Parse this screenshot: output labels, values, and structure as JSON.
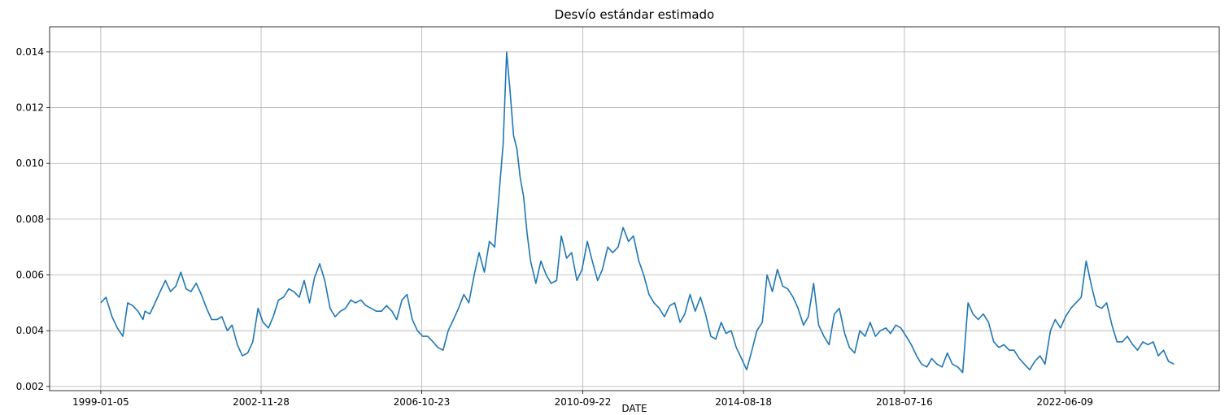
{
  "chart_data": {
    "type": "line",
    "title": "Desvío estándar estimado",
    "xlabel": "DATE",
    "ylabel": "",
    "grid": true,
    "legend": "none",
    "line_color": "#1f77b4",
    "x_ticks": [
      "1999-01-05",
      "2002-11-28",
      "2006-10-23",
      "2010-09-22",
      "2014-08-18",
      "2018-07-16",
      "2022-06-09"
    ],
    "x_range": [
      "1997-10-08",
      "2026-03-10"
    ],
    "y_ticks": [
      "0.002",
      "0.004",
      "0.006",
      "0.008",
      "0.010",
      "0.012",
      "0.014"
    ],
    "y_values": [
      0.002,
      0.004,
      0.006,
      0.008,
      0.01,
      0.012,
      0.014
    ],
    "ylim": [
      0.00185,
      0.0149
    ],
    "series": [
      {
        "x": [
          "1999-01-05",
          "1999-02-20",
          "1999-04-15",
          "1999-06-01",
          "1999-07-20",
          "1999-09-01",
          "1999-10-15",
          "1999-12-01",
          "2000-01-15",
          "2000-02-01",
          "2000-03-15",
          "2000-05-01",
          "2000-06-15",
          "2000-08-01",
          "2000-09-15",
          "2000-11-01",
          "2000-12-15",
          "2001-02-01",
          "2001-03-15",
          "2001-05-01",
          "2001-06-15",
          "2001-08-01",
          "2001-09-15",
          "2001-11-01",
          "2001-12-15",
          "2002-02-01",
          "2002-03-15",
          "2002-05-01",
          "2002-06-15",
          "2002-08-01",
          "2002-09-15",
          "2002-11-01",
          "2002-12-15",
          "2003-02-01",
          "2003-03-15",
          "2003-05-01",
          "2003-06-15",
          "2003-08-01",
          "2003-09-15",
          "2003-11-01",
          "2003-12-15",
          "2004-02-01",
          "2004-03-15",
          "2004-05-01",
          "2004-06-15",
          "2004-08-01",
          "2004-09-15",
          "2004-11-01",
          "2004-12-15",
          "2005-02-01",
          "2005-03-15",
          "2005-05-01",
          "2005-06-15",
          "2005-08-01",
          "2005-09-15",
          "2005-11-01",
          "2005-12-15",
          "2006-02-01",
          "2006-03-15",
          "2006-05-01",
          "2006-06-15",
          "2006-08-01",
          "2006-09-15",
          "2006-11-01",
          "2006-12-15",
          "2007-02-01",
          "2007-03-15",
          "2007-05-01",
          "2007-06-15",
          "2007-08-01",
          "2007-09-15",
          "2007-11-01",
          "2007-12-15",
          "2008-02-01",
          "2008-03-15",
          "2008-05-01",
          "2008-06-15",
          "2008-08-01",
          "2008-09-15",
          "2008-10-15",
          "2008-11-15",
          "2008-12-15",
          "2009-01-15",
          "2009-02-15",
          "2009-03-15",
          "2009-04-15",
          "2009-05-15",
          "2009-06-15",
          "2009-08-01",
          "2009-09-15",
          "2009-11-01",
          "2009-12-15",
          "2010-02-01",
          "2010-03-15",
          "2010-05-01",
          "2010-06-15",
          "2010-08-01",
          "2010-09-15",
          "2010-11-01",
          "2010-12-15",
          "2011-02-01",
          "2011-03-15",
          "2011-05-01",
          "2011-06-15",
          "2011-08-01",
          "2011-09-15",
          "2011-11-01",
          "2011-12-15",
          "2012-02-01",
          "2012-03-15",
          "2012-05-01",
          "2012-06-15",
          "2012-08-01",
          "2012-09-15",
          "2012-11-01",
          "2012-12-15",
          "2013-02-01",
          "2013-03-15",
          "2013-05-01",
          "2013-06-15",
          "2013-08-01",
          "2013-09-15",
          "2013-11-01",
          "2013-12-15",
          "2014-02-01",
          "2014-03-15",
          "2014-05-01",
          "2014-06-15",
          "2014-08-01",
          "2014-09-15",
          "2014-11-01",
          "2014-12-15",
          "2015-02-01",
          "2015-03-15",
          "2015-05-01",
          "2015-06-15",
          "2015-08-01",
          "2015-09-15",
          "2015-11-01",
          "2015-12-15",
          "2016-02-01",
          "2016-03-15",
          "2016-05-01",
          "2016-06-15",
          "2016-08-01",
          "2016-09-15",
          "2016-11-01",
          "2016-12-15",
          "2017-02-01",
          "2017-03-15",
          "2017-05-01",
          "2017-06-15",
          "2017-08-01",
          "2017-09-15",
          "2017-11-01",
          "2017-12-15",
          "2018-02-01",
          "2018-03-15",
          "2018-05-01",
          "2018-06-15",
          "2018-08-01",
          "2018-09-15",
          "2018-11-01",
          "2018-12-15",
          "2019-02-01",
          "2019-03-15",
          "2019-05-01",
          "2019-06-15",
          "2019-08-01",
          "2019-09-15",
          "2019-11-01",
          "2019-12-15",
          "2020-02-01",
          "2020-03-15",
          "2020-05-01",
          "2020-06-15",
          "2020-08-01",
          "2020-09-15",
          "2020-11-01",
          "2020-12-15",
          "2021-02-01",
          "2021-03-15",
          "2021-05-01",
          "2021-06-15",
          "2021-08-01",
          "2021-09-15",
          "2021-11-01",
          "2021-12-15",
          "2022-02-01",
          "2022-03-15",
          "2022-05-01",
          "2022-06-15",
          "2022-08-01",
          "2022-09-15",
          "2022-11-01",
          "2022-12-15",
          "2023-02-01",
          "2023-03-15",
          "2023-05-01",
          "2023-06-15",
          "2023-08-01",
          "2023-09-15",
          "2023-11-01",
          "2023-12-15",
          "2024-02-01",
          "2024-03-15",
          "2024-05-01",
          "2024-06-15",
          "2024-08-01",
          "2024-09-15",
          "2024-11-01",
          "2024-12-15",
          "2025-02-01"
        ],
        "y": [
          0.005,
          0.0052,
          0.0045,
          0.0041,
          0.0038,
          0.005,
          0.0049,
          0.0047,
          0.0044,
          0.0047,
          0.0046,
          0.005,
          0.0054,
          0.0058,
          0.0054,
          0.0056,
          0.0061,
          0.0055,
          0.0054,
          0.0057,
          0.0053,
          0.0048,
          0.0044,
          0.0044,
          0.0045,
          0.004,
          0.0042,
          0.0035,
          0.0031,
          0.0032,
          0.0036,
          0.0048,
          0.0043,
          0.0041,
          0.0045,
          0.0051,
          0.0052,
          0.0055,
          0.0054,
          0.0052,
          0.0058,
          0.005,
          0.0059,
          0.0064,
          0.0058,
          0.0048,
          0.0045,
          0.0047,
          0.0048,
          0.0051,
          0.005,
          0.0051,
          0.0049,
          0.0048,
          0.0047,
          0.0047,
          0.0049,
          0.0047,
          0.0044,
          0.0051,
          0.0053,
          0.0044,
          0.004,
          0.0038,
          0.0038,
          0.0036,
          0.0034,
          0.0033,
          0.004,
          0.0044,
          0.0048,
          0.0053,
          0.005,
          0.006,
          0.0068,
          0.0061,
          0.0072,
          0.007,
          0.0092,
          0.0107,
          0.014,
          0.0126,
          0.011,
          0.0105,
          0.0095,
          0.0088,
          0.0075,
          0.0065,
          0.0057,
          0.0065,
          0.006,
          0.0057,
          0.0058,
          0.0074,
          0.0066,
          0.0068,
          0.0058,
          0.0062,
          0.0072,
          0.0065,
          0.0058,
          0.0062,
          0.007,
          0.0068,
          0.007,
          0.0077,
          0.0072,
          0.0074,
          0.0065,
          0.006,
          0.0053,
          0.005,
          0.0048,
          0.0045,
          0.0049,
          0.005,
          0.0043,
          0.0046,
          0.0053,
          0.0047,
          0.0052,
          0.0046,
          0.0038,
          0.0037,
          0.0043,
          0.0039,
          0.004,
          0.0034,
          0.003,
          0.0026,
          0.0033,
          0.004,
          0.0043,
          0.006,
          0.0054,
          0.0062,
          0.0056,
          0.0055,
          0.0052,
          0.0048,
          0.0042,
          0.0045,
          0.0057,
          0.0042,
          0.0038,
          0.0035,
          0.0046,
          0.0048,
          0.0039,
          0.0034,
          0.0032,
          0.004,
          0.0038,
          0.0043,
          0.0038,
          0.004,
          0.0041,
          0.0039,
          0.0042,
          0.0041,
          0.0038,
          0.0035,
          0.0031,
          0.0028,
          0.0027,
          0.003,
          0.0028,
          0.0027,
          0.0032,
          0.0028,
          0.0027,
          0.0025,
          0.005,
          0.0046,
          0.0044,
          0.0046,
          0.0043,
          0.0036,
          0.0034,
          0.0035,
          0.0033,
          0.0033,
          0.003,
          0.0028,
          0.0026,
          0.0029,
          0.0031,
          0.0028,
          0.004,
          0.0044,
          0.0041,
          0.0045,
          0.0048,
          0.005,
          0.0052,
          0.0065,
          0.0056,
          0.0049,
          0.0048,
          0.005,
          0.0042,
          0.0036,
          0.0036,
          0.0038,
          0.0035,
          0.0033,
          0.0036,
          0.0035,
          0.0036,
          0.0031,
          0.0033,
          0.0029,
          0.0028
        ]
      }
    ]
  }
}
